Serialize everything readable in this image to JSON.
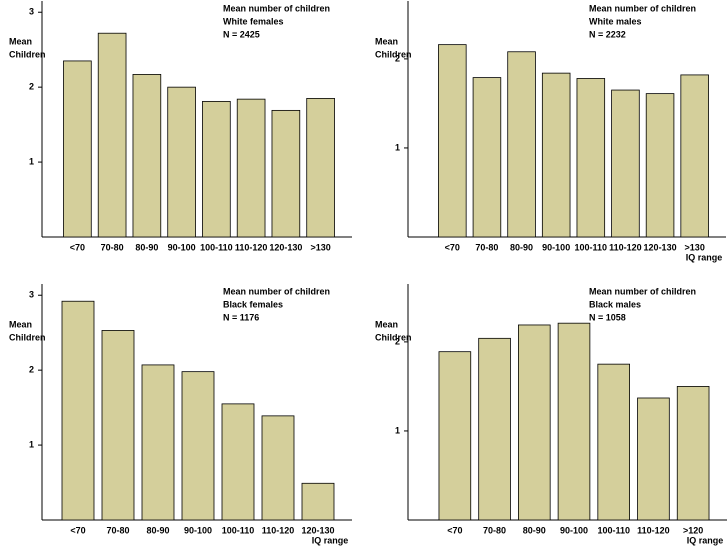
{
  "chart_data": [
    {
      "type": "bar",
      "title": "Mean number of children",
      "subtitle": "White females",
      "annotation": "N = 2425",
      "ylabel": [
        "Mean",
        "Children"
      ],
      "categories": [
        "<70",
        "70-80",
        "80-90",
        "90-100",
        "100-110",
        "110-120",
        "120-130",
        ">130"
      ],
      "values": [
        2.35,
        2.72,
        2.17,
        2.0,
        1.81,
        1.84,
        1.69,
        1.85
      ],
      "color": "#d4cf9b",
      "ylim": [
        0,
        3.15
      ],
      "yticks": [
        1,
        2,
        3
      ]
    },
    {
      "type": "bar",
      "title": "Mean number of children",
      "subtitle": "White males",
      "annotation": "N = 2232",
      "ylabel": [
        "Mean",
        "Children"
      ],
      "xlabel": "IQ range",
      "categories": [
        "<70",
        "70-80",
        "80-90",
        "90-100",
        "100-110",
        "110-120",
        "120-130",
        ">130"
      ],
      "values": [
        2.16,
        1.79,
        2.08,
        1.84,
        1.78,
        1.65,
        1.61,
        1.82
      ],
      "color": "#d4cf9b",
      "ylim": [
        0,
        2.65
      ],
      "yticks": [
        1,
        2
      ]
    },
    {
      "type": "bar",
      "title": "Mean number of children",
      "subtitle": "Black females",
      "annotation": "N = 1176",
      "ylabel": [
        "Mean",
        "Children"
      ],
      "xlabel": "IQ range",
      "categories": [
        "<70",
        "70-80",
        "80-90",
        "90-100",
        "100-110",
        "110-120",
        "120-130"
      ],
      "values": [
        2.92,
        2.53,
        2.07,
        1.98,
        1.55,
        1.39,
        0.49
      ],
      "color": "#d4cf9b",
      "ylim": [
        0,
        3.15
      ],
      "yticks": [
        1,
        2,
        3
      ]
    },
    {
      "type": "bar",
      "title": "Mean number of children",
      "subtitle": "Black males",
      "annotation": "N = 1058",
      "ylabel": [
        "Mean",
        "Children"
      ],
      "xlabel": "IQ range",
      "categories": [
        "<70",
        "70-80",
        "80-90",
        "90-100",
        "100-110",
        "110-120",
        ">120"
      ],
      "values": [
        1.89,
        2.04,
        2.19,
        2.21,
        1.75,
        1.37,
        1.5
      ],
      "color": "#d4cf9b",
      "ylim": [
        0,
        2.65
      ],
      "yticks": [
        1,
        2
      ]
    }
  ]
}
